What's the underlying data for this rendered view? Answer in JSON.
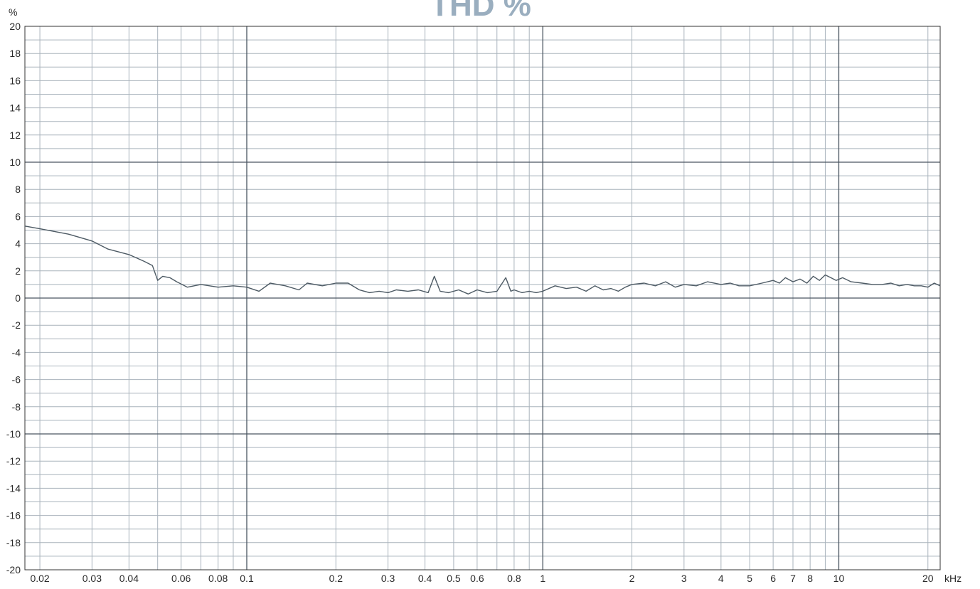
{
  "chart_data": {
    "type": "line",
    "title": "THD %",
    "ylabel": "%",
    "xlabel": "kHz",
    "x_scale": "log",
    "xlim": [
      0.0178,
      22.0
    ],
    "ylim": [
      -20,
      20
    ],
    "grid": true,
    "colors": {
      "major_grid": "#4a5560",
      "minor_grid": "#a9b3bc",
      "axis": "#333333",
      "series": "#4d5a64",
      "title": "#9aaebf"
    },
    "x_ticks": [
      {
        "v": 0.02,
        "label": "0.02"
      },
      {
        "v": 0.03,
        "label": "0.03"
      },
      {
        "v": 0.04,
        "label": "0.04"
      },
      {
        "v": 0.06,
        "label": "0.06"
      },
      {
        "v": 0.08,
        "label": "0.08"
      },
      {
        "v": 0.1,
        "label": "0.1"
      },
      {
        "v": 0.2,
        "label": "0.2"
      },
      {
        "v": 0.3,
        "label": "0.3"
      },
      {
        "v": 0.4,
        "label": "0.4"
      },
      {
        "v": 0.5,
        "label": "0.5"
      },
      {
        "v": 0.6,
        "label": "0.6"
      },
      {
        "v": 0.8,
        "label": "0.8"
      },
      {
        "v": 1,
        "label": "1"
      },
      {
        "v": 2,
        "label": "2"
      },
      {
        "v": 3,
        "label": "3"
      },
      {
        "v": 4,
        "label": "4"
      },
      {
        "v": 5,
        "label": "5"
      },
      {
        "v": 6,
        "label": "6"
      },
      {
        "v": 7,
        "label": "7"
      },
      {
        "v": 8,
        "label": "8"
      },
      {
        "v": 10,
        "label": "10"
      },
      {
        "v": 20,
        "label": "20"
      }
    ],
    "x_minor_gridlines": [
      0.02,
      0.03,
      0.04,
      0.05,
      0.06,
      0.07,
      0.08,
      0.09,
      0.2,
      0.3,
      0.4,
      0.5,
      0.6,
      0.7,
      0.8,
      0.9,
      2,
      3,
      4,
      5,
      6,
      7,
      8,
      9,
      20
    ],
    "x_major_gridlines": [
      0.1,
      1,
      10
    ],
    "y_ticks": [
      20,
      18,
      16,
      14,
      12,
      10,
      8,
      6,
      4,
      2,
      0,
      -2,
      -4,
      -6,
      -8,
      -10,
      -12,
      -14,
      -16,
      -18,
      -20
    ],
    "y_major_gridlines": [
      10,
      0,
      -10
    ],
    "series": [
      {
        "values_x": [
          0.0178,
          0.02,
          0.025,
          0.03,
          0.034,
          0.04,
          0.045,
          0.048,
          0.05,
          0.052,
          0.055,
          0.058,
          0.063,
          0.07,
          0.08,
          0.09,
          0.1,
          0.11,
          0.12,
          0.135,
          0.15,
          0.16,
          0.18,
          0.2,
          0.22,
          0.24,
          0.26,
          0.28,
          0.3,
          0.32,
          0.35,
          0.38,
          0.41,
          0.43,
          0.45,
          0.48,
          0.52,
          0.56,
          0.6,
          0.65,
          0.7,
          0.75,
          0.78,
          0.8,
          0.85,
          0.9,
          0.95,
          1.0,
          1.1,
          1.2,
          1.3,
          1.4,
          1.5,
          1.6,
          1.7,
          1.8,
          1.9,
          2.0,
          2.2,
          2.4,
          2.6,
          2.8,
          3.0,
          3.3,
          3.6,
          4.0,
          4.3,
          4.6,
          5.0,
          5.5,
          6.0,
          6.3,
          6.6,
          7.0,
          7.4,
          7.8,
          8.2,
          8.6,
          9.0,
          9.4,
          9.8,
          10.3,
          11,
          12,
          13,
          14,
          15,
          16,
          17,
          18,
          19,
          20,
          21,
          22
        ],
        "values_y": [
          5.3,
          5.1,
          4.7,
          4.2,
          3.6,
          3.2,
          2.7,
          2.4,
          1.3,
          1.6,
          1.5,
          1.2,
          0.8,
          1.0,
          0.8,
          0.9,
          0.8,
          0.5,
          1.1,
          0.9,
          0.6,
          1.1,
          0.9,
          1.1,
          1.1,
          0.6,
          0.4,
          0.5,
          0.4,
          0.6,
          0.5,
          0.6,
          0.4,
          1.6,
          0.5,
          0.4,
          0.6,
          0.3,
          0.6,
          0.4,
          0.5,
          1.5,
          0.5,
          0.6,
          0.4,
          0.5,
          0.4,
          0.5,
          0.9,
          0.7,
          0.8,
          0.5,
          0.9,
          0.6,
          0.7,
          0.5,
          0.8,
          1.0,
          1.1,
          0.9,
          1.2,
          0.8,
          1.0,
          0.9,
          1.2,
          1.0,
          1.1,
          0.9,
          0.9,
          1.1,
          1.3,
          1.1,
          1.5,
          1.2,
          1.4,
          1.1,
          1.6,
          1.3,
          1.7,
          1.5,
          1.3,
          1.5,
          1.2,
          1.1,
          1.0,
          1.0,
          1.1,
          0.9,
          1.0,
          0.9,
          0.9,
          0.8,
          1.1,
          0.9
        ]
      }
    ]
  }
}
